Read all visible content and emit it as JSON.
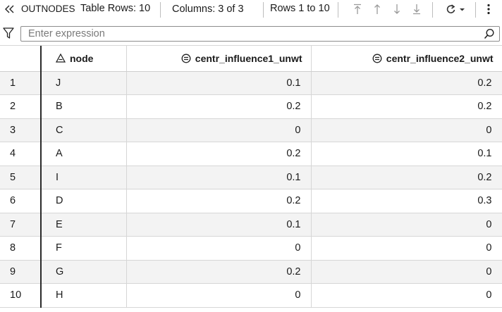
{
  "toolbar": {
    "table_name": "OUTNODES",
    "table_rows": "Table Rows: 10",
    "columns": "Columns: 3 of 3",
    "rows_range": "Rows 1 to 10"
  },
  "filter": {
    "placeholder": "Enter expression",
    "value": ""
  },
  "table": {
    "columns": [
      {
        "label": "node",
        "type": "character"
      },
      {
        "label": "centr_influence1_unwt",
        "type": "numeric"
      },
      {
        "label": "centr_influence2_unwt",
        "type": "numeric"
      }
    ],
    "rows": [
      {
        "index": "1",
        "node": "J",
        "c1": "0.1",
        "c2": "0.2"
      },
      {
        "index": "2",
        "node": "B",
        "c1": "0.2",
        "c2": "0.2"
      },
      {
        "index": "3",
        "node": "C",
        "c1": "0",
        "c2": "0"
      },
      {
        "index": "4",
        "node": "A",
        "c1": "0.2",
        "c2": "0.1"
      },
      {
        "index": "5",
        "node": "I",
        "c1": "0.1",
        "c2": "0.2"
      },
      {
        "index": "6",
        "node": "D",
        "c1": "0.2",
        "c2": "0.3"
      },
      {
        "index": "7",
        "node": "E",
        "c1": "0.1",
        "c2": "0"
      },
      {
        "index": "8",
        "node": "F",
        "c1": "0",
        "c2": "0"
      },
      {
        "index": "9",
        "node": "G",
        "c1": "0.2",
        "c2": "0"
      },
      {
        "index": "10",
        "node": "H",
        "c1": "0",
        "c2": "0"
      }
    ]
  },
  "icons": {
    "collapse": "double-chevron-left-icon",
    "first": "first-page-icon",
    "previous": "arrow-up-icon",
    "next": "arrow-down-icon",
    "last": "last-page-icon",
    "refresh": "refresh-icon",
    "more": "more-vertical-icon",
    "filter": "filter-icon",
    "search": "search-icon",
    "char_column": "character-column-icon",
    "num_column": "numeric-column-icon"
  }
}
